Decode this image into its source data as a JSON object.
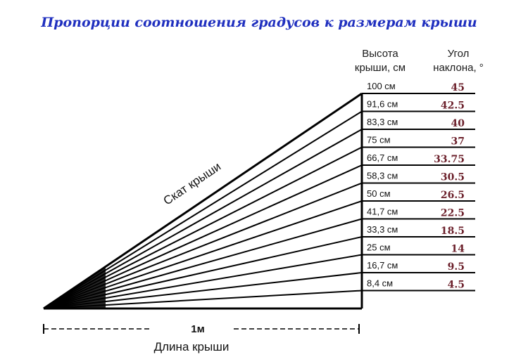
{
  "title": "Пропорции соотношения градусов к размерам крыши",
  "column_headers": {
    "height_line1": "Высота",
    "height_line2": "крыши, см",
    "angle_line1": "Угол",
    "angle_line2": "наклона, °"
  },
  "slope_label": "Скат крыши",
  "span_label": "1м",
  "length_label": "Длина крыши",
  "colors": {
    "title": "#1f2fbf",
    "angle_values": "#6b1f2a",
    "lines": "#000000"
  },
  "rows": [
    {
      "height": "100 см",
      "angle": "45"
    },
    {
      "height": "91,6 см",
      "angle": "42.5"
    },
    {
      "height": "83,3 см",
      "angle": "40"
    },
    {
      "height": "75 см",
      "angle": "37"
    },
    {
      "height": "66,7 см",
      "angle": "33.75"
    },
    {
      "height": "58,3 см",
      "angle": "30.5"
    },
    {
      "height": "50 см",
      "angle": "26.5"
    },
    {
      "height": "41,7 см",
      "angle": "22.5"
    },
    {
      "height": "33,3 см",
      "angle": "18.5"
    },
    {
      "height": "25 см",
      "angle": "14"
    },
    {
      "height": "16,7 см",
      "angle": "9.5"
    },
    {
      "height": "8,4 см",
      "angle": "4.5"
    }
  ]
}
